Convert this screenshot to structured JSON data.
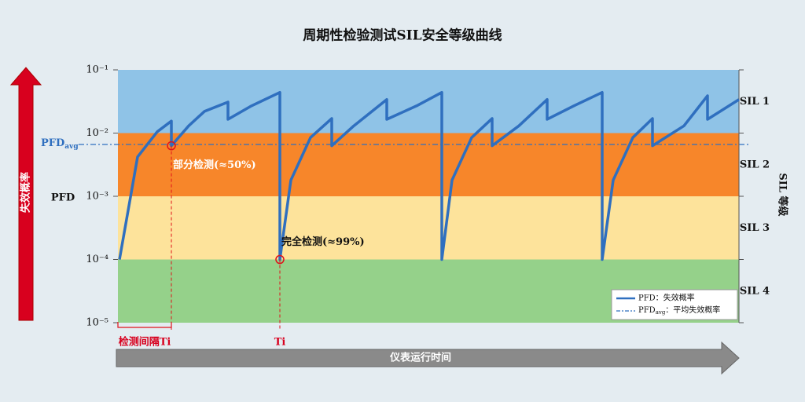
{
  "chart_data": {
    "type": "line",
    "title": "周期性检验测试SIL安全等级曲线",
    "y_label": "PFD",
    "y_arrow_label": "失效概率",
    "x_label": "仪表运行时间",
    "y2_label": "SIL 等级",
    "log_scale": true,
    "legend": "lower right",
    "ylim": [
      1e-05,
      0.1
    ],
    "yticks": [
      {
        "value": 0.1,
        "label": "10⁻¹"
      },
      {
        "value": 0.01,
        "label": "10⁻²"
      },
      {
        "value": 0.001,
        "label": "10⁻³"
      },
      {
        "value": 0.0001,
        "label": "10⁻⁴"
      },
      {
        "value": 1e-05,
        "label": "10⁻⁵"
      }
    ],
    "xlim": [
      0,
      79
    ],
    "bands": [
      {
        "label": "SIL 1",
        "from": 0.01,
        "to": 0.1,
        "color": "#8fc3e7"
      },
      {
        "label": "SIL 2",
        "from": 0.001,
        "to": 0.01,
        "color": "#f7862a"
      },
      {
        "label": "SIL 3",
        "from": 0.0001,
        "to": 0.001,
        "color": "#fde39b"
      },
      {
        "label": "SIL 4",
        "from": 1e-05,
        "to": 0.0001,
        "color": "#95d18a"
      }
    ],
    "x": [
      0.2,
      2.5,
      5,
      6.8,
      6.8,
      9,
      11,
      14,
      14,
      17,
      20.6,
      20.6,
      22,
      24.5,
      27.2,
      27.2,
      30,
      34.2,
      34.2,
      38,
      41.2,
      41.2,
      42.5,
      45,
      47.6,
      47.6,
      51,
      54.6,
      54.6,
      58,
      61.6,
      61.6,
      63,
      65.5,
      68,
      68,
      72,
      75,
      75,
      79
    ],
    "series": [
      {
        "name": "PFD：失效概率",
        "color": "#2f6fbf",
        "values": [
          0.0001,
          0.0042,
          0.0105,
          0.0155,
          0.0063,
          0.013,
          0.022,
          0.031,
          0.0165,
          0.027,
          0.044,
          0.0001,
          0.0018,
          0.0085,
          0.017,
          0.0063,
          0.013,
          0.034,
          0.0165,
          0.027,
          0.044,
          0.0001,
          0.0018,
          0.0085,
          0.017,
          0.0063,
          0.013,
          0.034,
          0.0165,
          0.027,
          0.044,
          0.0001,
          0.0018,
          0.0085,
          0.017,
          0.0063,
          0.013,
          0.039,
          0.0165,
          0.034
        ]
      }
    ],
    "reference_line": {
      "value": 0.0066,
      "label": [
        "PFD",
        "avg"
      ],
      "legend": [
        "PFD",
        "avg",
        "：平均失效概率"
      ],
      "color": "#2f6fbf"
    },
    "annotations": [
      {
        "x": 6.8,
        "y": 0.0063,
        "text": "部分检测(≈50%)",
        "interval_label": "检测间隔Ti"
      },
      {
        "x": 20.6,
        "y": 0.0001,
        "text": "完全检测(≈99%)",
        "interval_label": "Ti"
      }
    ]
  }
}
